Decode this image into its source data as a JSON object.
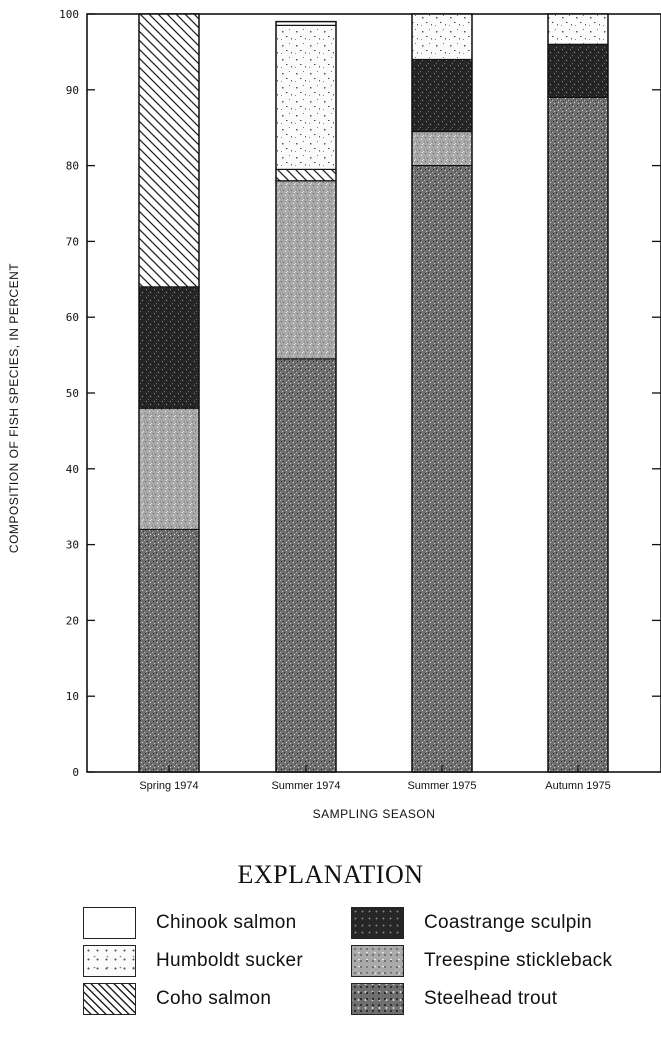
{
  "chart_data": {
    "type": "bar",
    "stacked": true,
    "title": "",
    "xlabel": "SAMPLING SEASON",
    "ylabel": "COMPOSITION OF FISH SPECIES, IN PERCENT",
    "ylim": [
      0,
      100
    ],
    "yticks": [
      0,
      10,
      20,
      30,
      40,
      50,
      60,
      70,
      80,
      90,
      100
    ],
    "categories": [
      "Spring 1974",
      "Summer 1974",
      "Summer 1975",
      "Autumn 1975"
    ],
    "series": [
      {
        "name": "Steelhead trout",
        "values": [
          32,
          54.5,
          80,
          89
        ],
        "pattern": "dark"
      },
      {
        "name": "Treespine stickleback",
        "values": [
          16,
          23.5,
          4.5,
          0
        ],
        "pattern": "medium"
      },
      {
        "name": "Coastrange sculpin",
        "values": [
          16,
          0,
          9.5,
          7
        ],
        "pattern": "black"
      },
      {
        "name": "Coho salmon",
        "values": [
          36,
          1.5,
          0,
          0
        ],
        "pattern": "hatch"
      },
      {
        "name": "Humboldt sucker",
        "values": [
          0,
          19,
          6,
          4
        ],
        "pattern": "speckle"
      },
      {
        "name": "Chinook salmon",
        "values": [
          0,
          0.5,
          0,
          0
        ],
        "pattern": "white"
      }
    ],
    "grid": false,
    "legend_position": "bottom"
  },
  "legend": {
    "title": "EXPLANATION",
    "items": [
      {
        "label": "Chinook salmon",
        "pattern": "white"
      },
      {
        "label": "Coastrange sculpin",
        "pattern": "black"
      },
      {
        "label": "Humboldt sucker",
        "pattern": "speckle"
      },
      {
        "label": "Treespine stickleback",
        "pattern": "medium"
      },
      {
        "label": "Coho salmon",
        "pattern": "hatch"
      },
      {
        "label": "Steelhead trout",
        "pattern": "dark"
      }
    ]
  },
  "colors": {
    "dark": "#6a6a6a",
    "medium": "#a3a3a3",
    "black": "#2a2a2a",
    "speckle": "#f2f2f2",
    "white": "#ffffff",
    "ink": "#111111"
  }
}
